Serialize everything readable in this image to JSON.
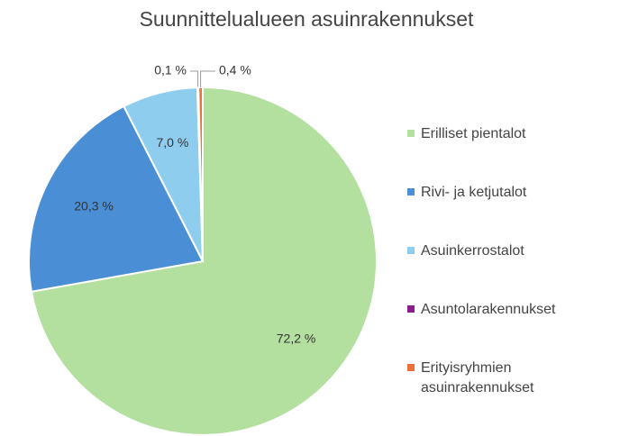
{
  "chart_data": {
    "type": "pie",
    "title": "Suunnittelualueen asuinrakennukset",
    "categories": [
      "Erilliset pientalot",
      "Rivi- ja ketjutalot",
      "Asuinkerrostalot",
      "Asuntolarakennukset",
      "Erityisryhmien asuinrakennukset"
    ],
    "values": [
      72.2,
      20.3,
      7.0,
      0.1,
      0.4
    ],
    "value_labels": [
      "72,2 %",
      "20,3 %",
      "7,0 %",
      "0,1 %",
      "0,4 %"
    ],
    "colors": [
      "#b3e09f",
      "#4a8ed6",
      "#8fcdef",
      "#8e1c8e",
      "#e8743b"
    ],
    "legend": "right"
  }
}
